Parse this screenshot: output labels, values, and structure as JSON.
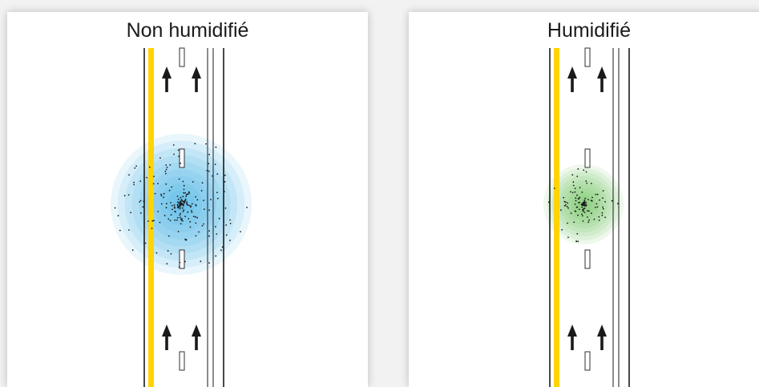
{
  "panels": [
    {
      "id": "left",
      "title": "Non humidifié",
      "cloud_color": "#29a9e0",
      "dust_level": 1.0
    },
    {
      "id": "right",
      "title": "Humidifié",
      "cloud_color": "#5cb848",
      "dust_level": 0.5
    }
  ],
  "colors": {
    "center_line": "#ffd400",
    "lane_lines": "#1a1a1a",
    "arrows": "#1a1a1a",
    "dust_dots": "#1a1a1a"
  },
  "icons": [
    "up-arrow-icon",
    "lane-marker",
    "dust-cloud"
  ]
}
